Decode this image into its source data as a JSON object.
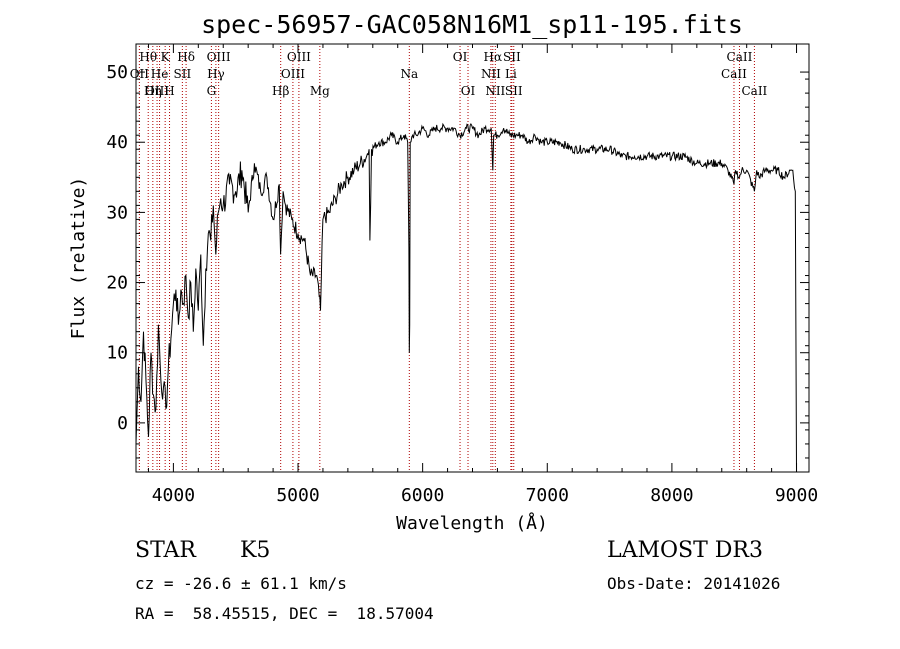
{
  "chart_data": {
    "type": "line",
    "title": "spec-56957-GAC058N16M1_sp11-195.fits",
    "xlabel": "Wavelength (Å)",
    "ylabel": "Flux (relative)",
    "xlim": [
      3700,
      9100
    ],
    "ylim": [
      -7,
      54
    ],
    "xticks": [
      4000,
      5000,
      6000,
      7000,
      8000,
      9000
    ],
    "yticks": [
      0,
      10,
      20,
      30,
      40,
      50
    ],
    "x_tick_labels": [
      "4000",
      "5000",
      "6000",
      "7000",
      "8000",
      "9000"
    ],
    "y_tick_labels": [
      "0",
      "10",
      "20",
      "30",
      "40",
      "50"
    ],
    "series": [
      {
        "name": "spectrum",
        "x": [
          3700,
          3720,
          3740,
          3760,
          3780,
          3800,
          3820,
          3840,
          3860,
          3880,
          3900,
          3920,
          3940,
          3960,
          3980,
          4000,
          4020,
          4040,
          4060,
          4080,
          4100,
          4120,
          4140,
          4160,
          4180,
          4200,
          4220,
          4240,
          4260,
          4280,
          4300,
          4320,
          4340,
          4360,
          4380,
          4400,
          4450,
          4500,
          4550,
          4600,
          4650,
          4700,
          4750,
          4800,
          4850,
          4860,
          4880,
          4900,
          4950,
          5000,
          5050,
          5100,
          5150,
          5170,
          5180,
          5200,
          5250,
          5300,
          5350,
          5400,
          5450,
          5500,
          5550,
          5570,
          5577,
          5590,
          5650,
          5700,
          5750,
          5800,
          5850,
          5880,
          5890,
          5893,
          5896,
          5900,
          5920,
          5950,
          6000,
          6050,
          6100,
          6150,
          6200,
          6250,
          6300,
          6350,
          6400,
          6450,
          6500,
          6550,
          6563,
          6570,
          6600,
          6650,
          6700,
          6750,
          6800,
          6850,
          6900,
          6950,
          7000,
          7100,
          7200,
          7300,
          7400,
          7500,
          7600,
          7700,
          7800,
          7900,
          8000,
          8100,
          8200,
          8300,
          8400,
          8450,
          8498,
          8510,
          8542,
          8560,
          8600,
          8662,
          8680,
          8700,
          8750,
          8800,
          8850,
          8900,
          8950,
          8970,
          8990,
          9000
        ],
        "y": [
          -3,
          8,
          3,
          13,
          6,
          -2,
          10,
          4,
          2,
          14,
          6,
          5,
          2,
          8,
          12,
          17,
          19,
          14,
          19,
          17,
          21,
          15,
          20,
          13,
          22,
          16,
          24,
          11,
          22,
          27,
          26,
          31,
          24,
          30,
          32,
          31,
          34,
          33,
          36,
          30,
          37,
          33,
          35,
          29,
          34,
          24,
          33,
          31,
          29,
          27,
          26,
          21,
          21,
          18,
          16,
          29,
          30,
          32,
          34,
          35,
          36,
          37,
          38,
          39,
          26,
          39,
          40,
          40,
          41,
          40,
          41,
          40,
          25,
          10,
          14,
          40,
          41,
          41,
          42,
          41,
          42,
          42,
          42,
          42,
          41,
          42,
          42,
          41,
          42,
          42,
          36,
          41,
          41,
          42,
          41,
          41,
          41,
          40,
          41,
          40,
          40,
          40,
          39,
          39,
          39,
          39,
          38,
          38,
          38,
          38,
          38,
          38,
          37,
          37,
          37,
          36,
          34,
          36,
          35,
          36,
          36,
          33,
          36,
          35,
          36,
          36,
          36,
          35,
          36,
          36,
          33,
          -7
        ]
      }
    ],
    "annotations": [
      {
        "text": "Hθ",
        "x": 3798,
        "row": 1
      },
      {
        "text": "OII",
        "x": 3727,
        "row": 2
      },
      {
        "text": "OIII",
        "x": 3869,
        "row": 3
      },
      {
        "text": "He",
        "x": 3889,
        "row": 2
      },
      {
        "text": "Hη",
        "x": 3835,
        "row": 3
      },
      {
        "text": "K",
        "x": 3934,
        "row": 1
      },
      {
        "text": "H",
        "x": 3969,
        "row": 3
      },
      {
        "text": "SII",
        "x": 4072,
        "row": 2
      },
      {
        "text": "Hδ",
        "x": 4102,
        "row": 1
      },
      {
        "text": "OIII",
        "x": 4363,
        "row": 1
      },
      {
        "text": "Hγ",
        "x": 4341,
        "row": 2
      },
      {
        "text": "G",
        "x": 4305,
        "row": 3
      },
      {
        "text": "Hβ",
        "x": 4861,
        "row": 3
      },
      {
        "text": "OIII",
        "x": 4959,
        "row": 2
      },
      {
        "text": "OIII",
        "x": 5007,
        "row": 1
      },
      {
        "text": "Mg",
        "x": 5175,
        "row": 3
      },
      {
        "text": "Na",
        "x": 5893,
        "row": 2
      },
      {
        "text": "OI",
        "x": 6300,
        "row": 1
      },
      {
        "text": "OI",
        "x": 6364,
        "row": 3
      },
      {
        "text": "NII",
        "x": 6548,
        "row": 2
      },
      {
        "text": "Hα",
        "x": 6563,
        "row": 1
      },
      {
        "text": "NII",
        "x": 6583,
        "row": 3
      },
      {
        "text": "SII",
        "x": 6716,
        "row": 1
      },
      {
        "text": "Li",
        "x": 6708,
        "row": 2
      },
      {
        "text": "SII",
        "x": 6731,
        "row": 3
      },
      {
        "text": "CaII",
        "x": 8498,
        "row": 2
      },
      {
        "text": "CaII",
        "x": 8542,
        "row": 1
      },
      {
        "text": "CaII",
        "x": 8662,
        "row": 3
      }
    ],
    "grid": false
  },
  "info": {
    "class_label": "STAR",
    "subclass": "K5",
    "survey": "LAMOST DR3",
    "cz": "cz = -26.6 ± 61.1 km/s",
    "obs_date": "Obs-Date: 20141026",
    "coords": "RA =  58.45515, DEC =  18.57004"
  },
  "colors": {
    "line_marker": "#b00000",
    "spectrum": "#000000"
  }
}
